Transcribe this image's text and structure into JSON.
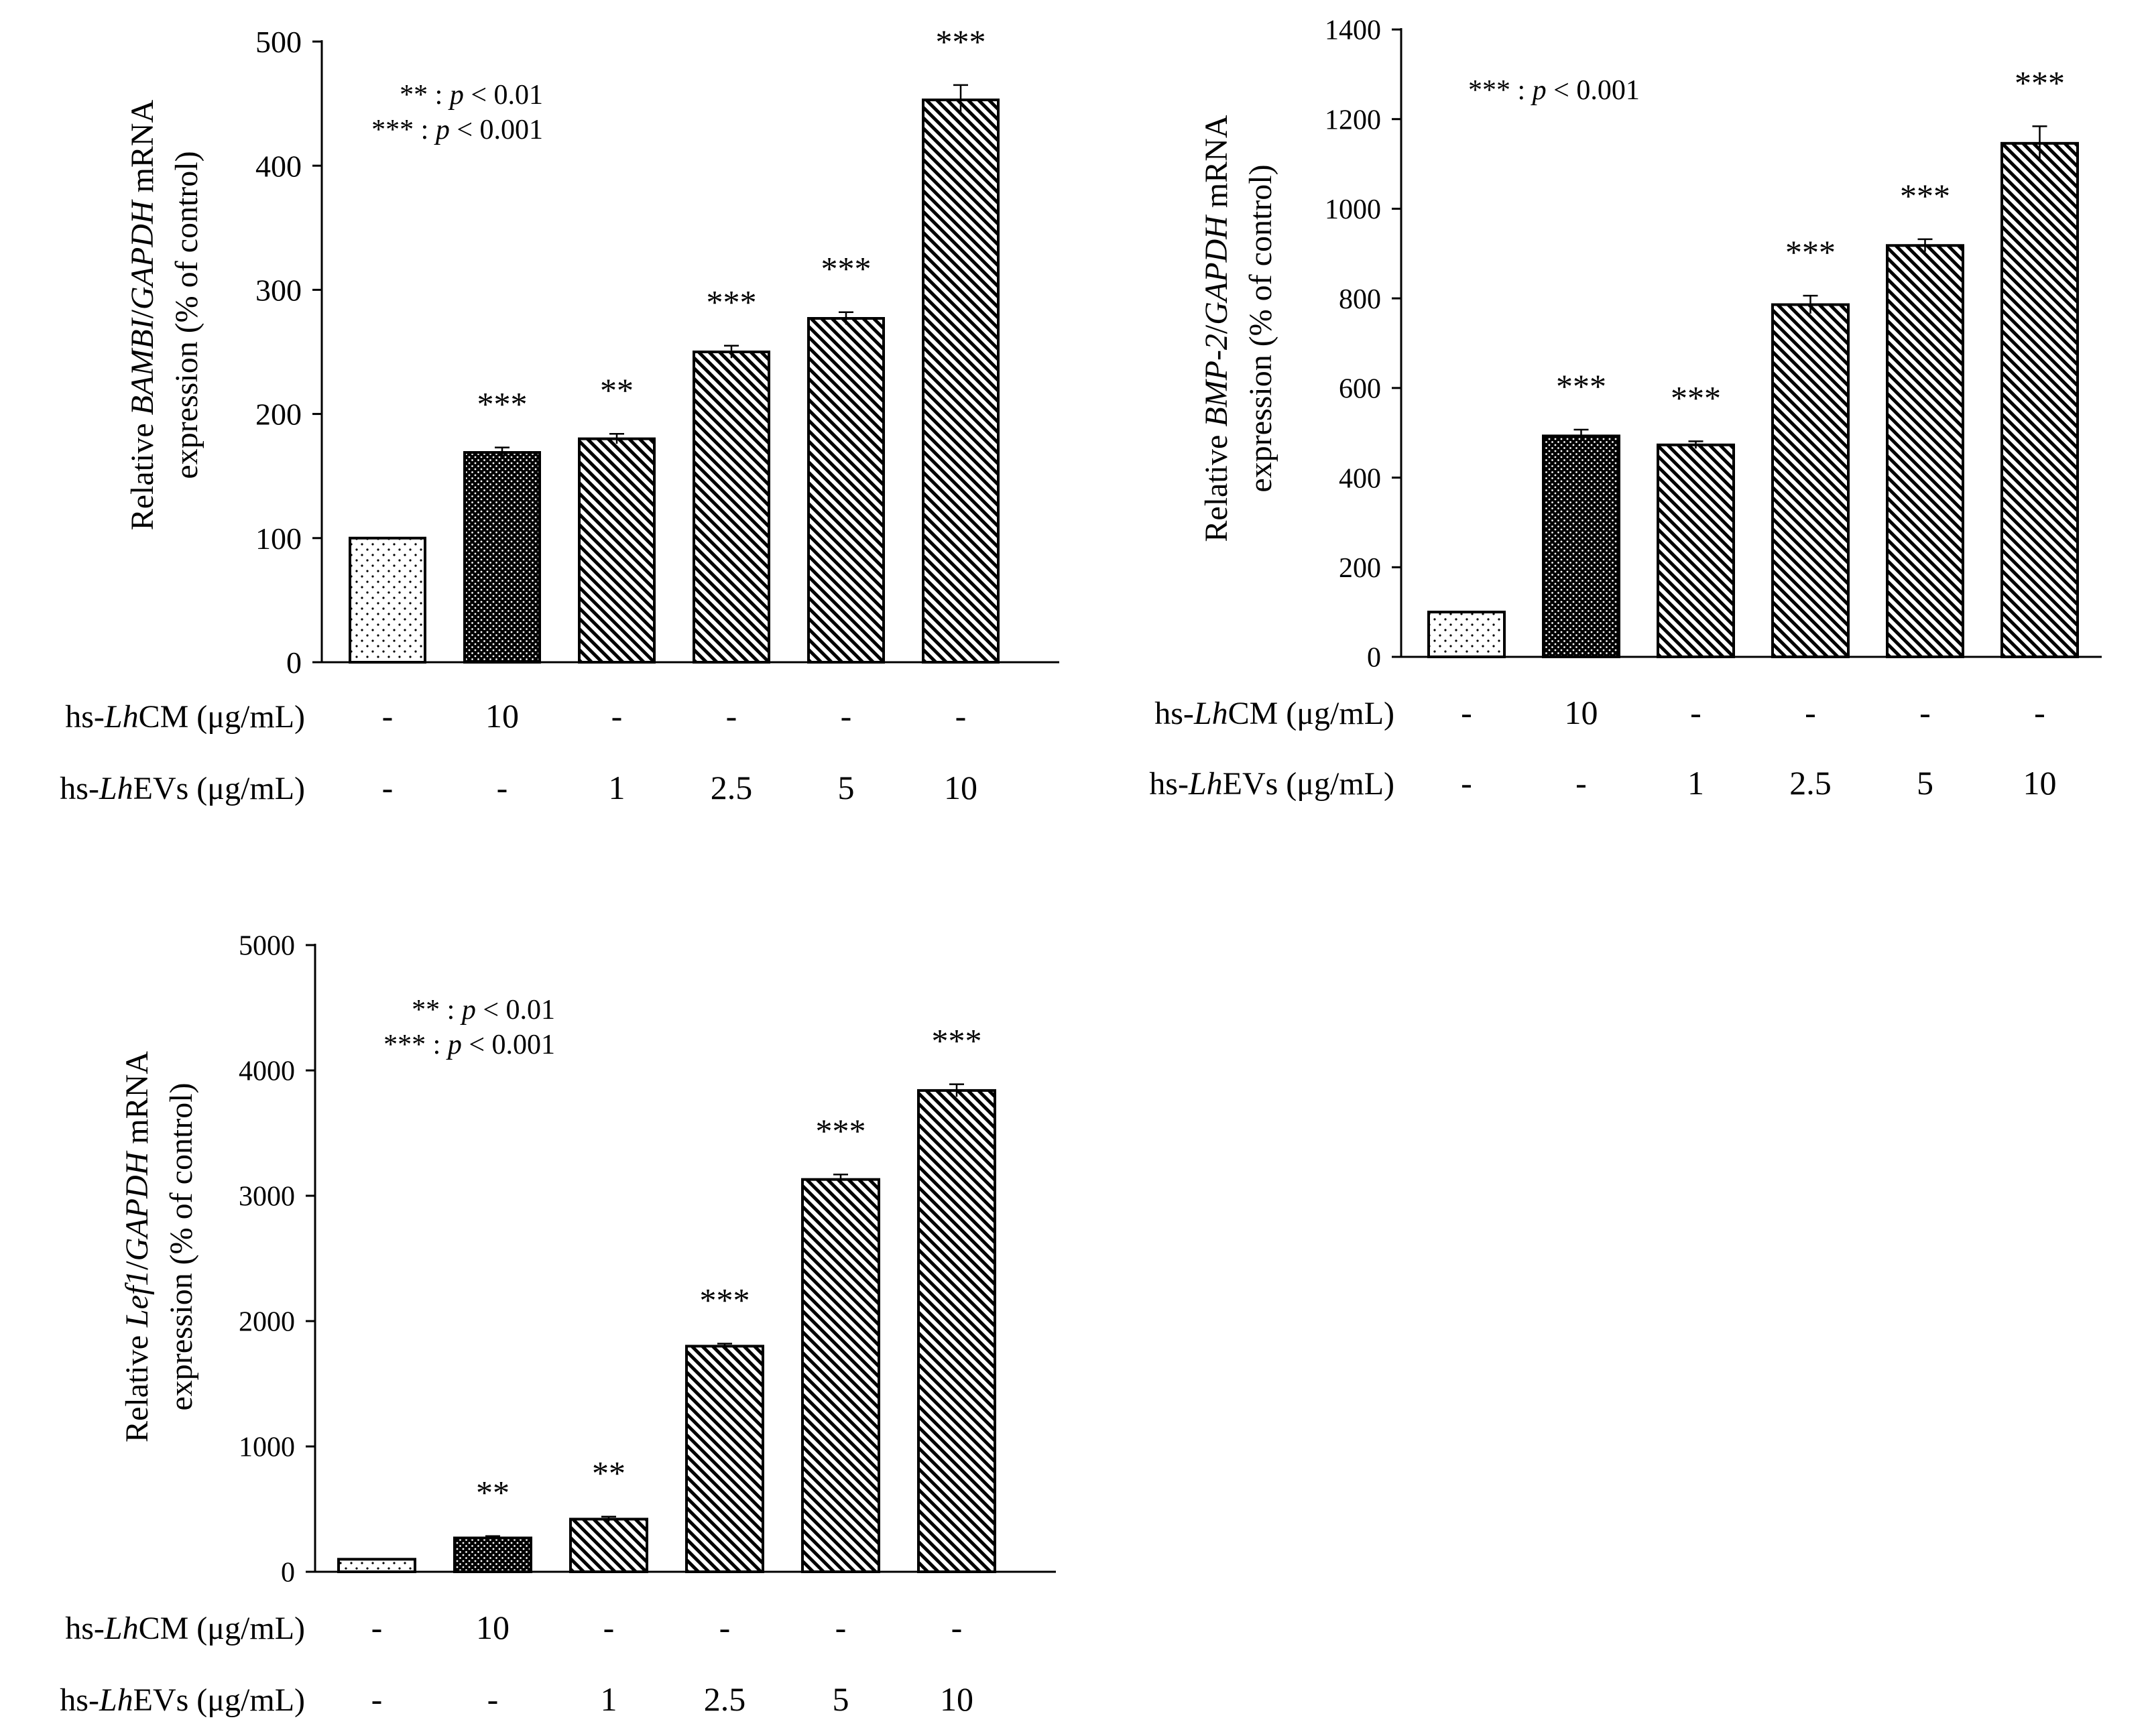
{
  "chart_data": [
    {
      "id": "bambi",
      "type": "bar",
      "ylabel": {
        "line1_prefix": "Relative ",
        "gene": "BAMBI",
        "line1_mid": "/",
        "ref_gene": "GAPDH",
        "line1_suffix": " mRNA",
        "line2": "expression (% of control)"
      },
      "ylim": [
        0,
        500
      ],
      "yticks": [
        "0",
        "100",
        "200",
        "300",
        "400",
        "500"
      ],
      "tick_values": [
        0,
        100,
        200,
        300,
        400,
        500
      ],
      "values": [
        100,
        169,
        180,
        250,
        277,
        453
      ],
      "errors": [
        0,
        4,
        4,
        5,
        5,
        12
      ],
      "patterns": [
        "dots",
        "dense",
        "hatch",
        "hatch",
        "hatch",
        "hatch"
      ],
      "significance": [
        "",
        "***",
        "**",
        "***",
        "***",
        "***"
      ],
      "legend": [
        {
          "stars": "** ",
          "sep": ": ",
          "p": "p",
          "rest": " < 0.01"
        },
        {
          "stars": "*** ",
          "sep": ": ",
          "p": "p",
          "rest": " < 0.001"
        }
      ],
      "treatment_rows": [
        {
          "prefix": "hs-",
          "italic": "Lh",
          "suffix": "CM (μg/mL)",
          "values": [
            "-",
            "10",
            "-",
            "-",
            "-",
            "-"
          ]
        },
        {
          "prefix": "hs-",
          "italic": "Lh",
          "suffix": "EVs (μg/mL)",
          "values": [
            "-",
            "-",
            "1",
            "2.5",
            "5",
            "10"
          ]
        }
      ]
    },
    {
      "id": "bmp2",
      "type": "bar",
      "ylabel": {
        "line1_prefix": "Relative ",
        "gene": "BMP-2",
        "line1_mid": "/",
        "ref_gene": "GAPDH",
        "line1_suffix": " mRNA",
        "line2": "expression (% of control)"
      },
      "ylim": [
        0,
        1400
      ],
      "yticks": [
        "0",
        "200",
        "400",
        "600",
        "800",
        "1000",
        "1200",
        "1400"
      ],
      "tick_values": [
        0,
        200,
        400,
        600,
        800,
        1000,
        1200,
        1400
      ],
      "values": [
        100,
        493,
        473,
        786,
        918,
        1146
      ],
      "errors": [
        0,
        14,
        8,
        20,
        14,
        38
      ],
      "patterns": [
        "dots",
        "dense",
        "hatch",
        "hatch",
        "hatch",
        "hatch"
      ],
      "significance": [
        "",
        "***",
        "***",
        "***",
        "***",
        "***"
      ],
      "legend": [
        {
          "stars": "*** ",
          "sep": ": ",
          "p": "p",
          "rest": " < 0.001"
        }
      ],
      "treatment_rows": [
        {
          "prefix": "hs-",
          "italic": "Lh",
          "suffix": "CM (μg/mL)",
          "values": [
            "-",
            "10",
            "-",
            "-",
            "-",
            "-"
          ]
        },
        {
          "prefix": "hs-",
          "italic": "Lh",
          "suffix": "EVs (μg/mL)",
          "values": [
            "-",
            "-",
            "1",
            "2.5",
            "5",
            "10"
          ]
        }
      ]
    },
    {
      "id": "lef1",
      "type": "bar",
      "ylabel": {
        "line1_prefix": "Relative ",
        "gene": "Lef1",
        "line1_mid": "/",
        "ref_gene": "GAPDH",
        "line1_suffix": " mRNA",
        "line2": "expression (% of control)"
      },
      "ylim": [
        0,
        5000
      ],
      "yticks": [
        "0",
        "1000",
        "2000",
        "3000",
        "4000",
        "5000"
      ],
      "tick_values": [
        0,
        1000,
        2000,
        3000,
        4000,
        5000
      ],
      "values": [
        100,
        270,
        420,
        1800,
        3130,
        3840
      ],
      "errors": [
        0,
        15,
        20,
        20,
        40,
        50
      ],
      "patterns": [
        "dots",
        "dense",
        "hatch",
        "hatch",
        "hatch",
        "hatch"
      ],
      "significance": [
        "",
        "**",
        "**",
        "***",
        "***",
        "***"
      ],
      "legend": [
        {
          "stars": "** ",
          "sep": ": ",
          "p": "p",
          "rest": " < 0.01"
        },
        {
          "stars": "*** ",
          "sep": ": ",
          "p": "p",
          "rest": " < 0.001"
        }
      ],
      "treatment_rows": [
        {
          "prefix": "hs-",
          "italic": "Lh",
          "suffix": "CM (μg/mL)",
          "values": [
            "-",
            "10",
            "-",
            "-",
            "-",
            "-"
          ]
        },
        {
          "prefix": "hs-",
          "italic": "Lh",
          "suffix": "EVs (μg/mL)",
          "values": [
            "-",
            "-",
            "1",
            "2.5",
            "5",
            "10"
          ]
        }
      ]
    }
  ],
  "colors": {
    "ink": "#000000",
    "bar_fill": "#ffffff",
    "axis": "#000000"
  }
}
